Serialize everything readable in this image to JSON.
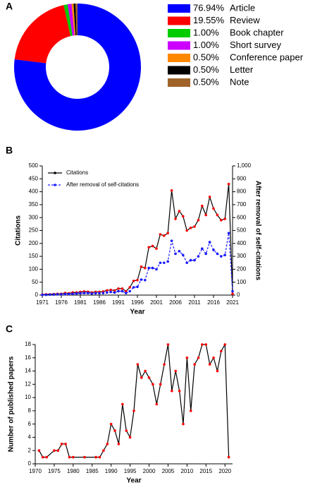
{
  "chart_data": [
    {
      "type": "pie",
      "panel_label": "A",
      "categories": [
        "Article",
        "Review",
        "Book chapter",
        "Short survey",
        "Conference paper",
        "Letter",
        "Note"
      ],
      "values": [
        76.94,
        19.55,
        1.0,
        1.0,
        0.5,
        0.5,
        0.5
      ],
      "value_labels": [
        "76.94%",
        "19.55%",
        "1.00%",
        "1.00%",
        "0.50%",
        "0.50%",
        "0.50%"
      ],
      "colors": [
        "#0000ff",
        "#ff0000",
        "#00cc00",
        "#cc00ff",
        "#ff8800",
        "#000000",
        "#a0642a"
      ],
      "donut": true
    },
    {
      "type": "line",
      "panel_label": "B",
      "xlabel": "Year",
      "ylabel": "Citations",
      "y2label": "After removal of self-citations",
      "x": [
        1971,
        1972,
        1973,
        1974,
        1975,
        1976,
        1977,
        1978,
        1979,
        1980,
        1981,
        1982,
        1983,
        1984,
        1985,
        1986,
        1987,
        1988,
        1989,
        1990,
        1991,
        1992,
        1993,
        1994,
        1995,
        1996,
        1997,
        1998,
        1999,
        2000,
        2001,
        2002,
        2003,
        2004,
        2005,
        2006,
        2007,
        2008,
        2009,
        2010,
        2011,
        2012,
        2013,
        2014,
        2015,
        2016,
        2017,
        2018,
        2019,
        2020,
        2021
      ],
      "series": [
        {
          "name": "Citations",
          "color": "#000000",
          "marker_color": "#ff0000",
          "linestyle": "solid",
          "values": [
            2,
            3,
            3,
            4,
            5,
            5,
            8,
            7,
            10,
            10,
            12,
            14,
            13,
            10,
            12,
            12,
            14,
            18,
            20,
            18,
            25,
            25,
            15,
            30,
            55,
            58,
            110,
            105,
            185,
            190,
            180,
            235,
            230,
            240,
            405,
            295,
            325,
            305,
            250,
            260,
            265,
            290,
            345,
            310,
            380,
            335,
            310,
            290,
            295,
            430,
            5
          ]
        },
        {
          "name": "After removal of self-citations",
          "color": "#1a1aff",
          "marker_color": "#1a1aff",
          "linestyle": "dashed",
          "axis": "y2",
          "values": [
            2,
            2,
            4,
            4,
            6,
            6,
            8,
            8,
            10,
            12,
            14,
            16,
            16,
            12,
            14,
            14,
            16,
            20,
            24,
            20,
            30,
            30,
            16,
            30,
            60,
            64,
            120,
            116,
            210,
            210,
            200,
            250,
            250,
            260,
            420,
            320,
            340,
            310,
            250,
            270,
            270,
            300,
            360,
            320,
            410,
            350,
            320,
            300,
            310,
            480,
            30
          ]
        }
      ],
      "xlim": [
        1971,
        2021
      ],
      "xticks": [
        1971,
        1976,
        1981,
        1986,
        1991,
        1996,
        2001,
        2006,
        2011,
        2016,
        2021
      ],
      "ylim": [
        0,
        500
      ],
      "yticks": [
        0,
        50,
        100,
        150,
        200,
        250,
        300,
        350,
        400,
        450,
        500
      ],
      "y2lim": [
        0,
        1000
      ],
      "y2ticks": [
        0,
        100,
        200,
        300,
        400,
        500,
        600,
        700,
        800,
        900,
        {
          "value": 1000,
          "label": "1,000"
        }
      ],
      "legend": "upper left"
    },
    {
      "type": "line",
      "panel_label": "C",
      "xlabel": "Year",
      "ylabel": "Number of published papers",
      "x": [
        1971,
        1972,
        1973,
        1975,
        1976,
        1977,
        1978,
        1979,
        1980,
        1983,
        1986,
        1987,
        1988,
        1989,
        1990,
        1991,
        1992,
        1993,
        1994,
        1995,
        1996,
        1997,
        1998,
        1999,
        2000,
        2001,
        2002,
        2003,
        2004,
        2005,
        2006,
        2007,
        2008,
        2009,
        2010,
        2011,
        2012,
        2013,
        2014,
        2015,
        2016,
        2017,
        2018,
        2019,
        2020,
        2021
      ],
      "series": [
        {
          "color": "#000000",
          "marker_color": "#ff0000",
          "linestyle": "solid",
          "values": [
            2,
            1,
            1,
            2,
            2,
            3,
            3,
            1,
            1,
            1,
            1,
            1,
            2,
            3,
            6,
            5,
            3,
            9,
            5,
            4,
            8,
            15,
            13,
            14,
            13,
            12,
            9,
            12,
            15,
            18,
            11,
            14,
            11,
            6,
            16,
            8,
            15,
            16,
            18,
            18,
            15,
            16,
            14,
            17,
            18,
            1
          ]
        }
      ],
      "xlim": [
        1970,
        2022
      ],
      "xticks": [
        1970,
        1975,
        1980,
        1985,
        1990,
        1995,
        2000,
        2005,
        2010,
        2015,
        2020
      ],
      "ylim": [
        0,
        18
      ],
      "yticks": [
        0,
        2,
        4,
        6,
        8,
        10,
        12,
        14,
        16,
        18
      ]
    }
  ]
}
